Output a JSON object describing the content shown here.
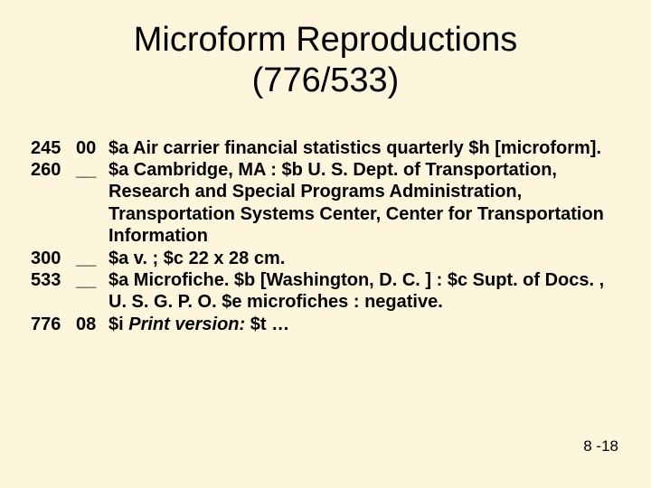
{
  "background_color": "#fdf6dd",
  "text_color": "#000000",
  "title": {
    "line1": "Microform Reproductions",
    "line2": "(776/533)",
    "fontsize": 38
  },
  "body_fontsize": 20,
  "fields": [
    {
      "tag": "245",
      "ind": "00",
      "value_parts": [
        {
          "text": "$a Air carrier financial statistics quarterly $h [microform]."
        }
      ]
    },
    {
      "tag": "260",
      "ind": "__",
      "value_parts": [
        {
          "text": "$a Cambridge, MA : $b U. S. Dept. of Transportation, Research and Special Programs Administration, Transportation Systems Center, Center for Transportation Information"
        }
      ]
    },
    {
      "tag": "300",
      "ind": "__",
      "value_parts": [
        {
          "text": "$a v. ; $c 22 x 28 cm."
        }
      ]
    },
    {
      "tag": "533",
      "ind": "__",
      "value_parts": [
        {
          "text": "$a Microfiche. $b [Washington, D. C. ] : $c Supt. of Docs. , U. S. G. P. O. $e microfiches : negative."
        }
      ]
    },
    {
      "tag": "776",
      "ind": "08",
      "value_parts": [
        {
          "text": "$i "
        },
        {
          "text": "Print version:",
          "italic": true
        },
        {
          "text": " $t …"
        }
      ]
    }
  ],
  "footer": "8 -18"
}
